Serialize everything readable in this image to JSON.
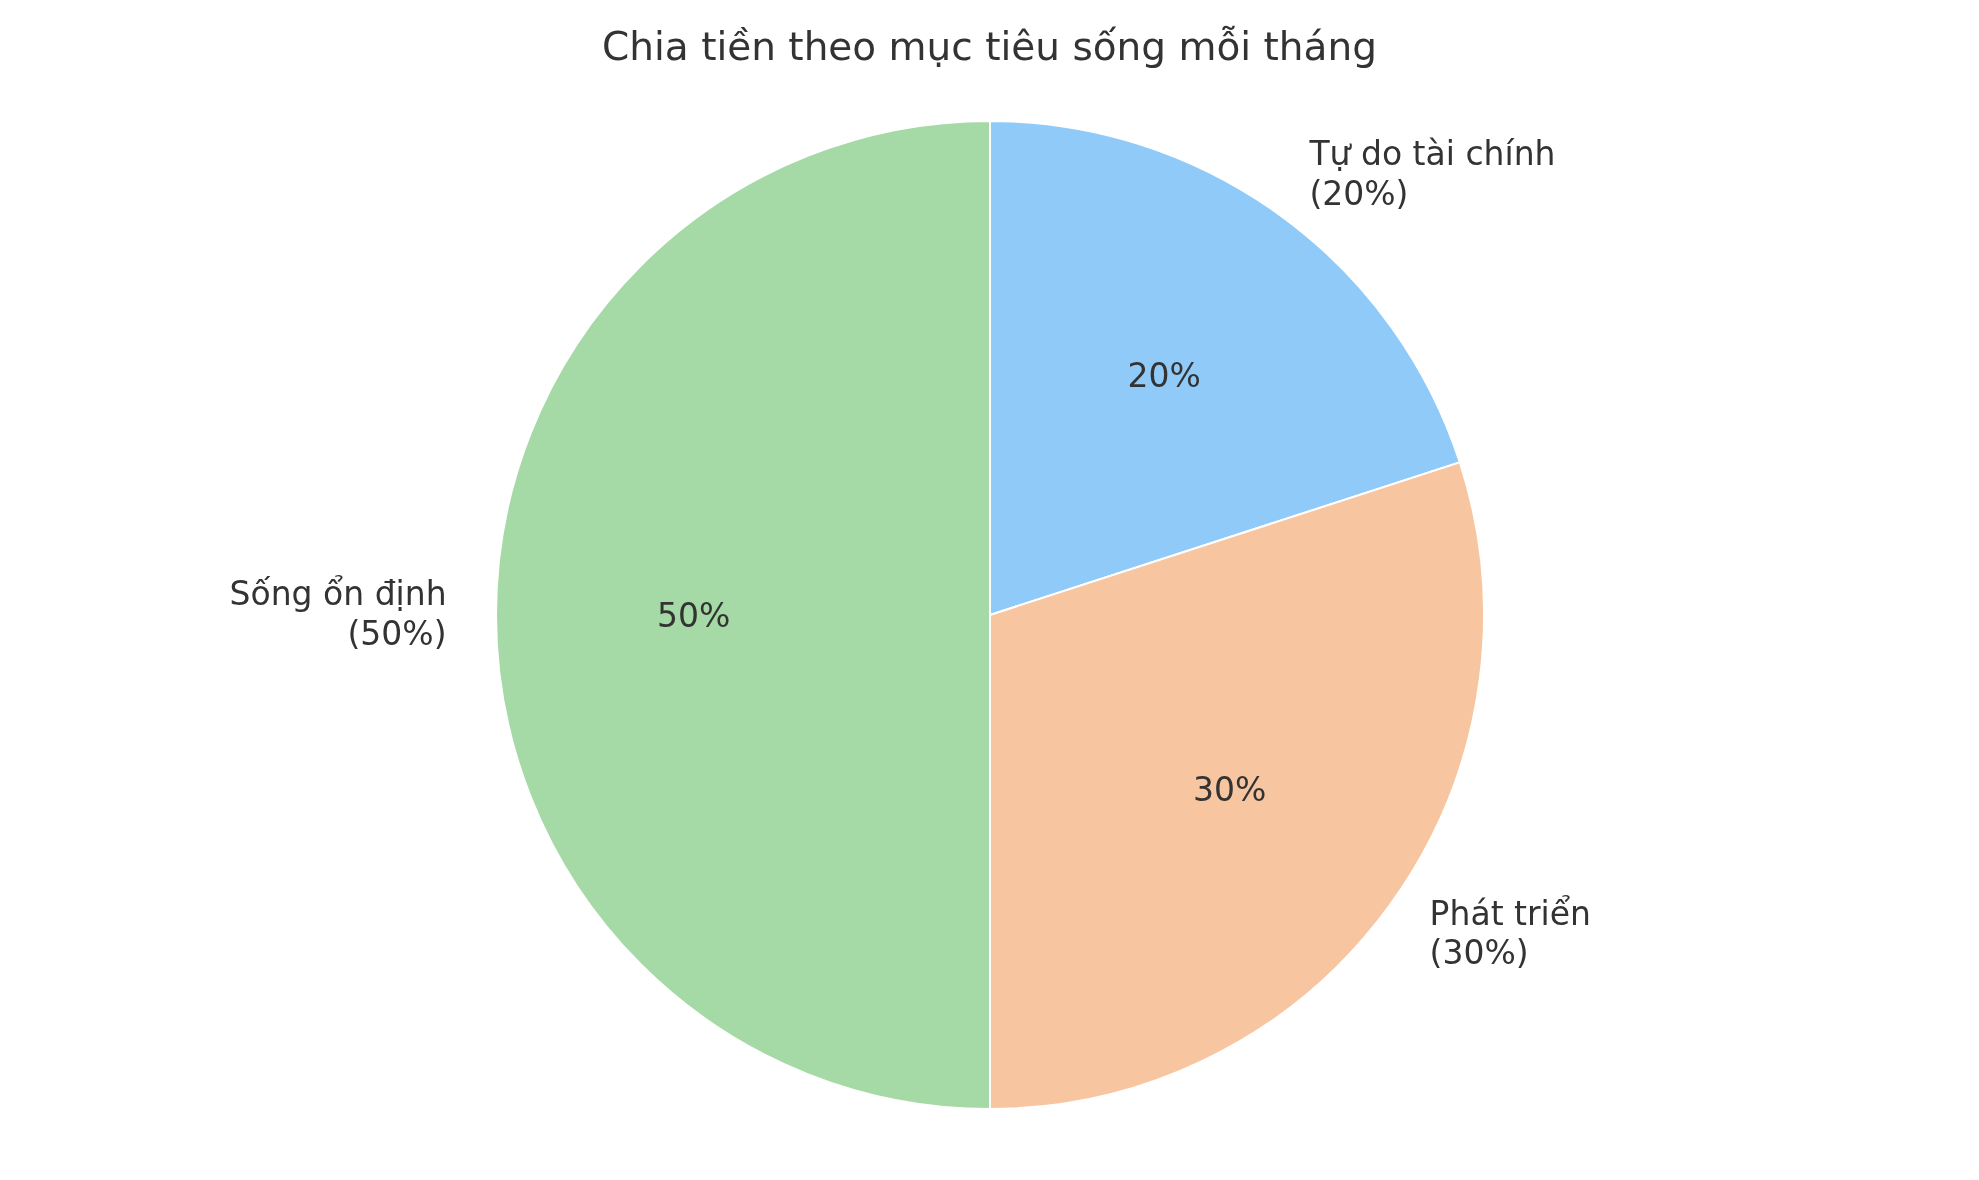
{
  "chart_data": {
    "type": "pie",
    "title": "Chia tiền theo mục tiêu sống mỗi tháng",
    "categories": [
      "Tự do tài chính\n(20%)",
      "Phát triển\n(30%)",
      "Sống ổn định\n(50%)"
    ],
    "values": [
      20,
      30,
      50
    ],
    "colors": [
      "#90caf9",
      "#f7c5a0",
      "#a5d9a5"
    ],
    "value_labels": [
      "20%",
      "30%",
      "50%"
    ],
    "legend": false
  }
}
